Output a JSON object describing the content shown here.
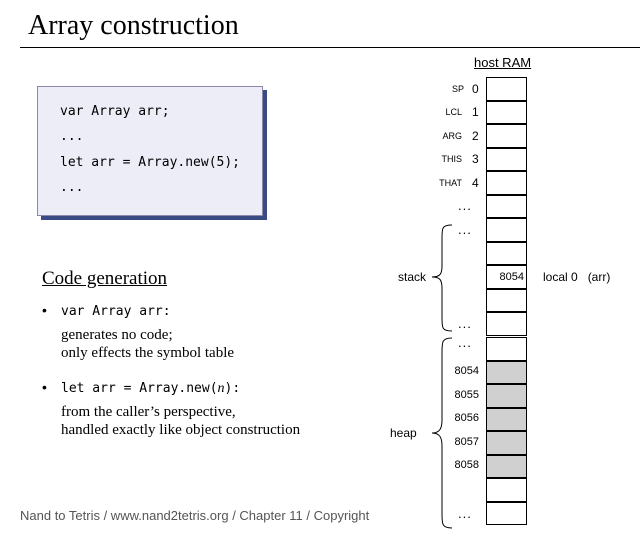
{
  "slide": {
    "title": "Array construction",
    "footer": "Nand to Tetris / www.nand2tetris.org / Chapter 11 / Copyright"
  },
  "code": {
    "lines": [
      "var Array arr;",
      "...",
      "let arr = Array.new(5);",
      "..."
    ]
  },
  "codegen": {
    "title": "Code generation",
    "b1_code": "var Array arr:",
    "b1_text1": "generates no code;",
    "b1_text2": "only effects the symbol table",
    "b2_code_pre": "let arr = Array.new(",
    "b2_code_var": "n",
    "b2_code_post": "):",
    "b2_text1": "from the caller’s perspective,",
    "b2_text2": "handled exactly like object construction"
  },
  "ram": {
    "title": "host RAM",
    "registers": [
      {
        "name": "SP",
        "index": "0"
      },
      {
        "name": "LCL",
        "index": "1"
      },
      {
        "name": "ARG",
        "index": "2"
      },
      {
        "name": "THIS",
        "index": "3"
      },
      {
        "name": "THAT",
        "index": "4"
      }
    ],
    "ellipsis": "...",
    "stack_label": "stack",
    "heap_label": "heap",
    "local_cell_value": "8054",
    "local_annotation": "local 0   (arr)",
    "heap_addresses": [
      "8054",
      "8055",
      "8056",
      "8057",
      "8058"
    ]
  }
}
